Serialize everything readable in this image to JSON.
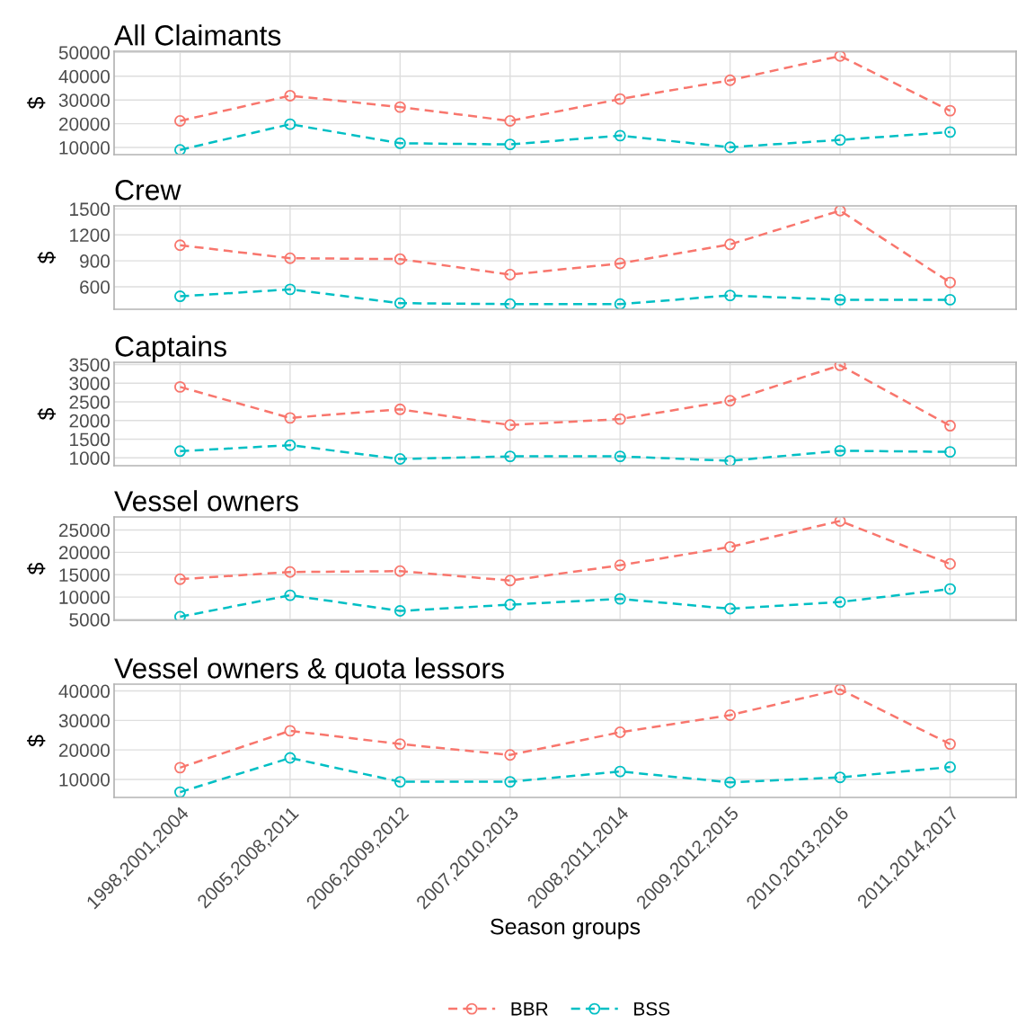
{
  "chart_data": [
    {
      "type": "line",
      "title": "All Claimants",
      "ylabel": "$",
      "categories": [
        "1998,2001,2004",
        "2005,2008,2011",
        "2006,2009,2012",
        "2007,2010,2013",
        "2008,2011,2014",
        "2009,2012,2015",
        "2010,2013,2016",
        "2011,2014,2017"
      ],
      "series": [
        {
          "name": "BBR",
          "color": "#f8766d",
          "values": [
            21200,
            31800,
            27000,
            21200,
            30400,
            38300,
            48500,
            25500
          ]
        },
        {
          "name": "BSS",
          "color": "#00bfc4",
          "values": [
            9000,
            19800,
            11800,
            11300,
            15000,
            10100,
            13200,
            16500
          ]
        }
      ],
      "ylim": [
        7000,
        50500
      ],
      "yticks": [
        10000,
        20000,
        30000,
        40000,
        50000
      ],
      "grid": true,
      "marker": "circle",
      "line_style": "dashed",
      "tick_labels": "y",
      "legend": "bottom"
    },
    {
      "type": "line",
      "title": "Crew",
      "ylabel": "$",
      "categories": [
        "1998,2001,2004",
        "2005,2008,2011",
        "2006,2009,2012",
        "2007,2010,2013",
        "2008,2011,2014",
        "2009,2012,2015",
        "2010,2013,2016",
        "2011,2014,2017"
      ],
      "series": [
        {
          "color": "#f8766d",
          "values": [
            1080,
            930,
            920,
            740,
            870,
            1090,
            1480,
            650
          ]
        },
        {
          "color": "#00bfc4",
          "values": [
            490,
            570,
            410,
            400,
            400,
            500,
            450,
            450
          ]
        }
      ],
      "ylim": [
        340,
        1535
      ],
      "yticks": [
        600,
        900,
        1200,
        1500
      ],
      "grid": true,
      "marker": "circle",
      "line_style": "dashed",
      "tick_labels": "y"
    },
    {
      "type": "line",
      "title": "Captains",
      "ylabel": "$",
      "categories": [
        "1998,2001,2004",
        "2005,2008,2011",
        "2006,2009,2012",
        "2007,2010,2013",
        "2008,2011,2014",
        "2009,2012,2015",
        "2010,2013,2016",
        "2011,2014,2017"
      ],
      "series": [
        {
          "color": "#f8766d",
          "values": [
            2900,
            2070,
            2300,
            1880,
            2040,
            2530,
            3480,
            1860
          ]
        },
        {
          "color": "#00bfc4",
          "values": [
            1180,
            1340,
            970,
            1040,
            1040,
            920,
            1190,
            1160
          ]
        }
      ],
      "ylim": [
        790,
        3560
      ],
      "yticks": [
        1000,
        1500,
        2000,
        2500,
        3000,
        3500
      ],
      "grid": true,
      "marker": "circle",
      "line_style": "dashed",
      "tick_labels": "y"
    },
    {
      "type": "line",
      "title": "Vessel owners",
      "ylabel": "$",
      "categories": [
        "1998,2001,2004",
        "2005,2008,2011",
        "2006,2009,2012",
        "2007,2010,2013",
        "2008,2011,2014",
        "2009,2012,2015",
        "2010,2013,2016",
        "2011,2014,2017"
      ],
      "series": [
        {
          "color": "#f8766d",
          "values": [
            14000,
            15600,
            15800,
            13700,
            17100,
            21200,
            27000,
            17400
          ]
        },
        {
          "color": "#00bfc4",
          "values": [
            5600,
            10400,
            6900,
            8300,
            9600,
            7400,
            8900,
            11800
          ]
        }
      ],
      "ylim": [
        4800,
        27900
      ],
      "yticks": [
        5000,
        10000,
        15000,
        20000,
        25000
      ],
      "grid": true,
      "marker": "circle",
      "line_style": "dashed",
      "tick_labels": "y"
    },
    {
      "type": "line",
      "title": "Vessel owners & quota lessors",
      "ylabel": "$",
      "xlabel": "Season groups",
      "categories": [
        "1998,2001,2004",
        "2005,2008,2011",
        "2006,2009,2012",
        "2007,2010,2013",
        "2008,2011,2014",
        "2009,2012,2015",
        "2010,2013,2016",
        "2011,2014,2017"
      ],
      "series": [
        {
          "color": "#f8766d",
          "values": [
            14000,
            26500,
            22000,
            18300,
            26000,
            31800,
            40500,
            22000
          ]
        },
        {
          "color": "#00bfc4",
          "values": [
            5700,
            17300,
            9200,
            9200,
            12700,
            9000,
            10700,
            14200
          ]
        }
      ],
      "ylim": [
        3900,
        42300
      ],
      "yticks": [
        10000,
        20000,
        30000,
        40000
      ],
      "grid": true,
      "marker": "circle",
      "line_style": "dashed"
    }
  ]
}
